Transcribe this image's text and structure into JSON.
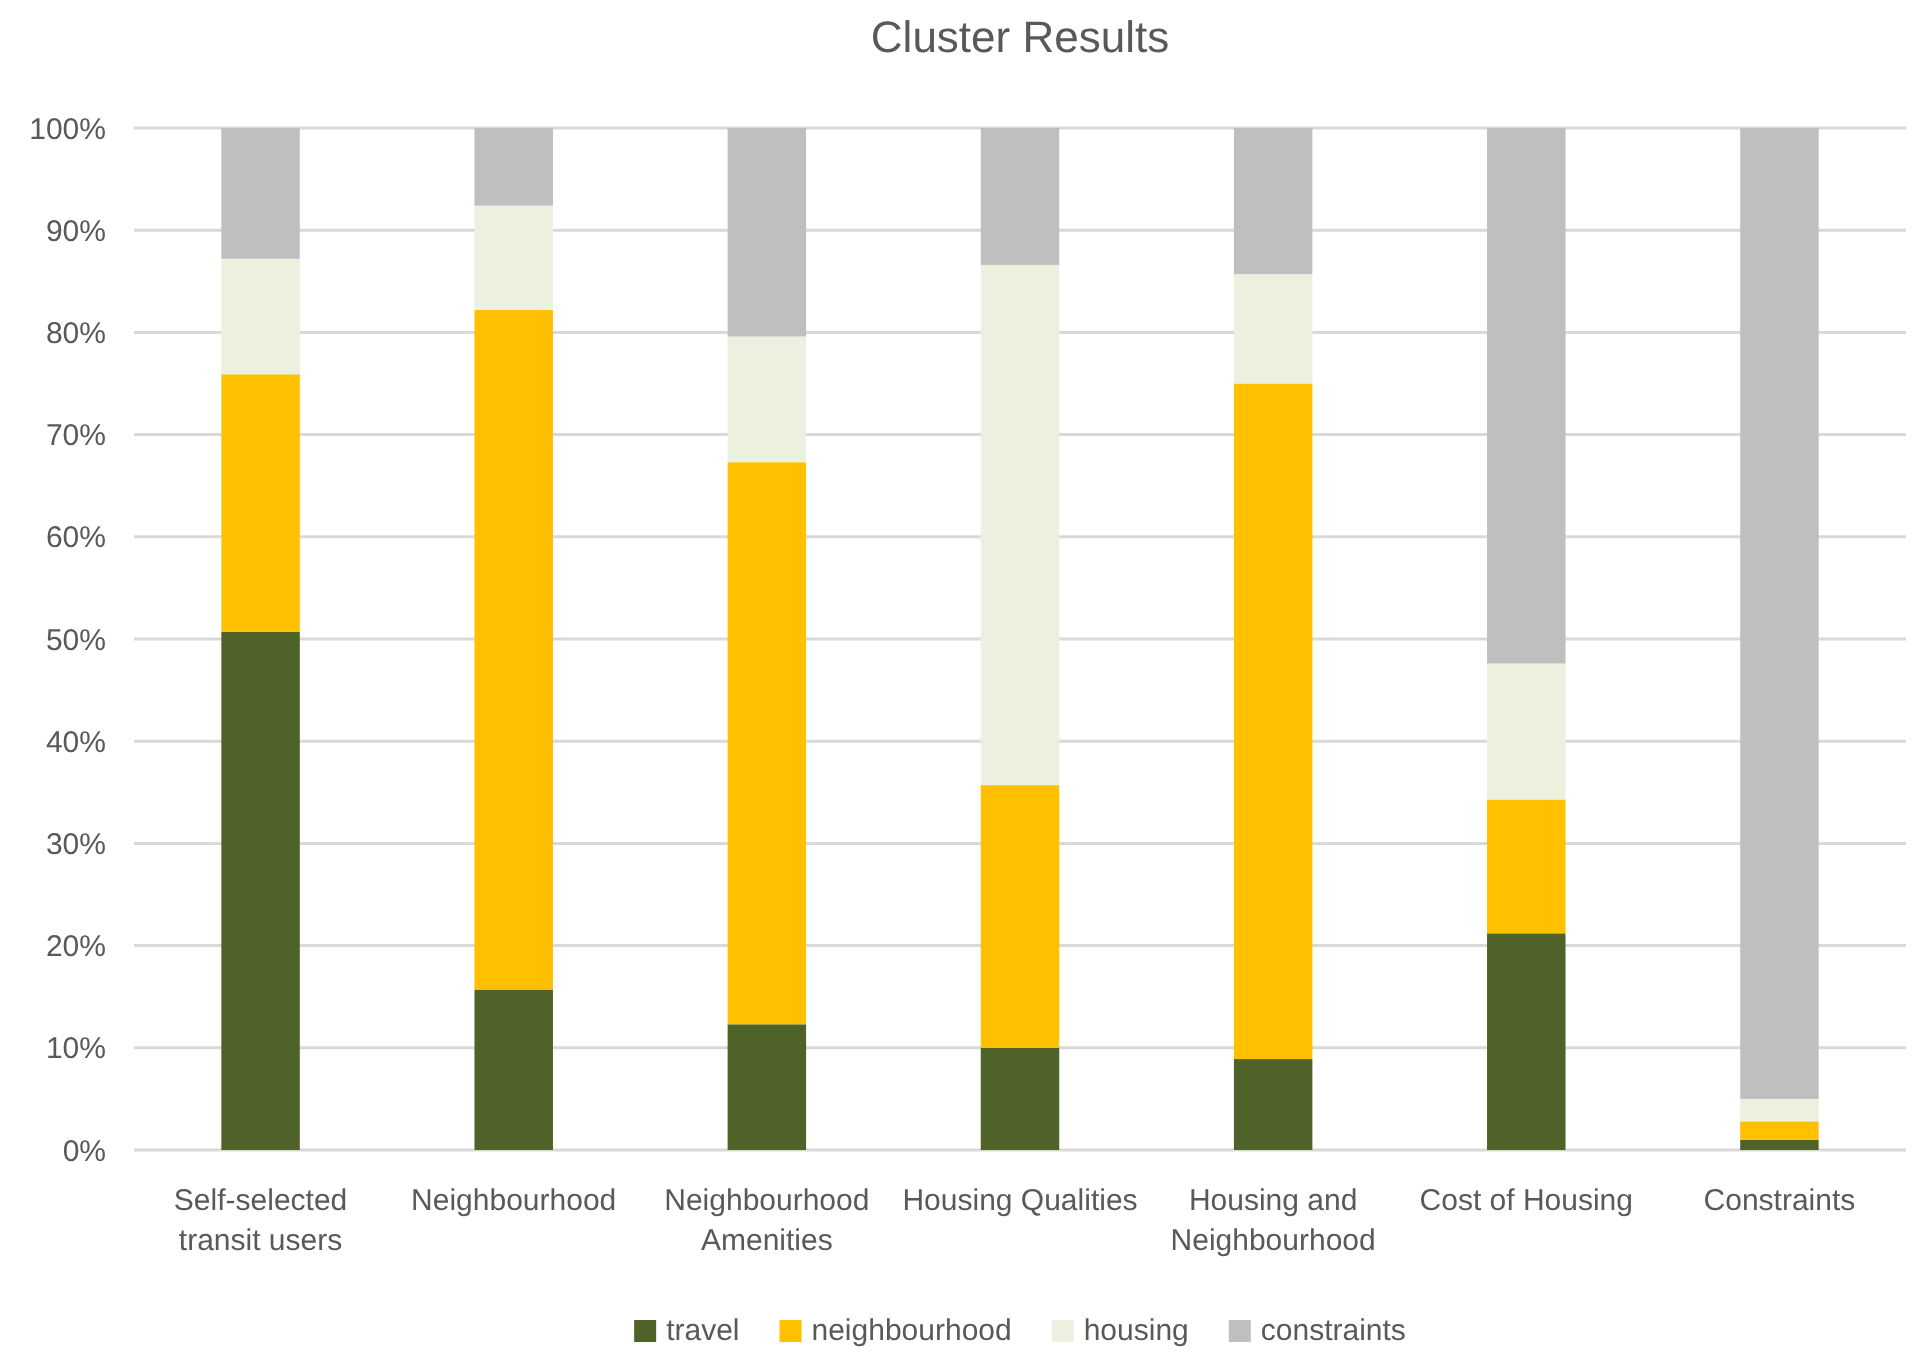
{
  "chart_data": {
    "type": "bar",
    "title": "Cluster Results",
    "stacked": true,
    "categories": [
      "Self-selected transit users",
      "Neighbourhood",
      "Neighbourhood Amenities",
      "Housing Qualities",
      "Housing and Neighbourhood",
      "Cost of Housing",
      "Constraints"
    ],
    "series": [
      {
        "name": "travel",
        "color": "#4f6228",
        "values": [
          50.7,
          15.7,
          12.3,
          10.0,
          8.9,
          21.2,
          1.0
        ]
      },
      {
        "name": "neighbourhood",
        "color": "#ffc000",
        "values": [
          25.2,
          66.5,
          55.0,
          25.7,
          66.1,
          13.1,
          1.8
        ]
      },
      {
        "name": "housing",
        "color": "#ebf1de",
        "values": [
          11.3,
          10.2,
          12.3,
          50.9,
          10.7,
          13.3,
          2.2
        ]
      },
      {
        "name": "constraints",
        "color": "#bfbfbf",
        "values": [
          12.8,
          7.6,
          20.4,
          13.4,
          14.3,
          52.4,
          95.0
        ]
      }
    ],
    "ylim": [
      0,
      100
    ],
    "yticks": [
      {
        "value": 0,
        "label": "0%"
      },
      {
        "value": 10,
        "label": "10%"
      },
      {
        "value": 20,
        "label": "20%"
      },
      {
        "value": 30,
        "label": "30%"
      },
      {
        "value": 40,
        "label": "40%"
      },
      {
        "value": 50,
        "label": "50%"
      },
      {
        "value": 60,
        "label": "60%"
      },
      {
        "value": 70,
        "label": "70%"
      },
      {
        "value": 80,
        "label": "80%"
      },
      {
        "value": 90,
        "label": "90%"
      },
      {
        "value": 100,
        "label": "100%"
      }
    ],
    "grid": "y",
    "legend": "bottom"
  }
}
